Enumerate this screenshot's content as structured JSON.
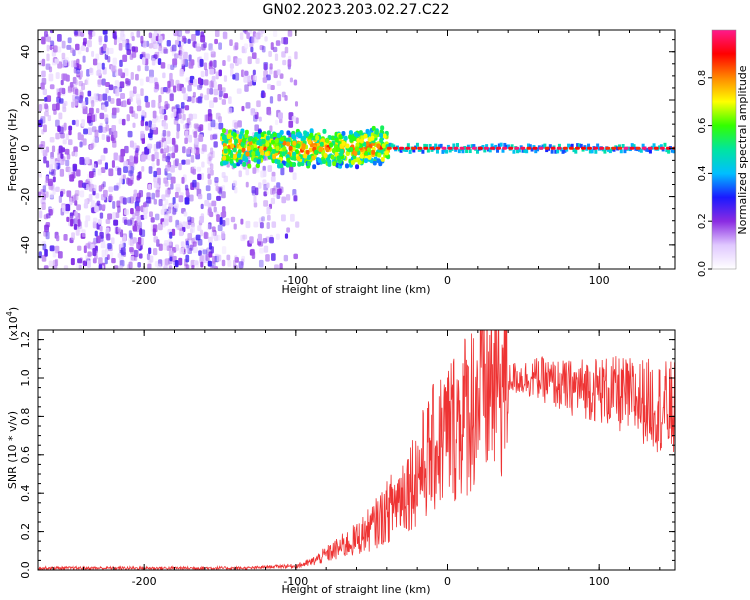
{
  "title": "GN02.2023.203.02.27.C22",
  "chart_data": [
    {
      "type": "heatmap",
      "xlabel": "Height of straight line (km)",
      "ylabel": "Frequency (Hz)",
      "xlim": [
        -270,
        150
      ],
      "ylim": [
        -50,
        49
      ],
      "xticks": [
        -200,
        -100,
        0,
        100
      ],
      "yticks": [
        -40,
        -20,
        0,
        20,
        40
      ],
      "colorbar": {
        "label": "Normalized spectral amplitude",
        "range": [
          0,
          1
        ],
        "ticks": [
          0.0,
          0.2,
          0.4,
          0.6,
          0.8
        ],
        "colormap": [
          "#ffffff",
          "#e0c8ff",
          "#8a2be2",
          "#1a1aff",
          "#00bfff",
          "#00e5a0",
          "#33ff00",
          "#ffff00",
          "#ff8800",
          "#ff0000",
          "#ff1a8c"
        ]
      },
      "regions": [
        {
          "x": [
            -270,
            -100
          ],
          "pattern": "scattered noise",
          "y": [
            -50,
            49
          ]
        },
        {
          "x": [
            -150,
            -40
          ],
          "pattern": "central band",
          "y": [
            -8,
            8
          ]
        },
        {
          "x": [
            -40,
            150
          ],
          "pattern": "narrow line near 0 Hz",
          "y": [
            -2,
            2
          ]
        }
      ],
      "grid": false
    },
    {
      "type": "line",
      "xlabel": "Height of straight line (km)",
      "ylabel": "SNR (10 * v/v)",
      "multiplier_label": "(x10",
      "multiplier_exponent": "4",
      "xlim": [
        -270,
        150
      ],
      "ylim": [
        0,
        1.25
      ],
      "xticks": [
        -200,
        -100,
        0,
        100
      ],
      "yticks": [
        0.0,
        0.2,
        0.4,
        0.6,
        0.8,
        1.0,
        1.2
      ],
      "series": [
        {
          "color": "#ee3333",
          "x": [
            -270,
            -200,
            -130,
            -110,
            -100,
            -90,
            -80,
            -70,
            -60,
            -50,
            -40,
            -30,
            -20,
            -10,
            0,
            10,
            20,
            30,
            40,
            50,
            60,
            70,
            80,
            90,
            100,
            110,
            120,
            130,
            140,
            150
          ],
          "y": [
            0.01,
            0.01,
            0.01,
            0.02,
            0.02,
            0.04,
            0.08,
            0.12,
            0.16,
            0.22,
            0.3,
            0.4,
            0.5,
            0.62,
            0.72,
            0.8,
            0.9,
            0.97,
            1.0,
            1.0,
            1.0,
            0.97,
            0.95,
            0.95,
            0.94,
            0.92,
            0.9,
            0.88,
            0.85,
            0.83
          ]
        }
      ],
      "grid": false
    }
  ]
}
